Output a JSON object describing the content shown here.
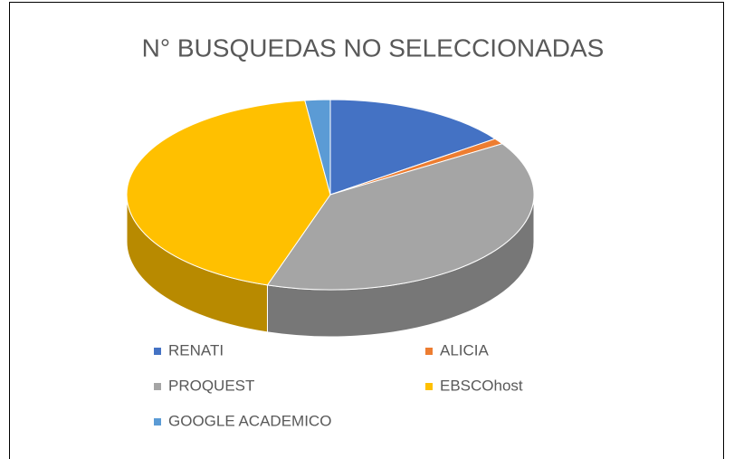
{
  "chart_data": {
    "type": "pie3d",
    "title": "N° BUSQUEDAS NO SELECCIONADAS",
    "categories": [
      "RENATI",
      "ALICIA",
      "PROQUEST",
      "EBSCOhost",
      "GOOGLE ACADEMICO"
    ],
    "values": [
      15,
      1,
      39,
      43,
      2
    ],
    "colors": [
      "#4472c4",
      "#ed7d31",
      "#a5a5a5",
      "#ffc000",
      "#5b9bd5"
    ],
    "legend": "bottom"
  }
}
